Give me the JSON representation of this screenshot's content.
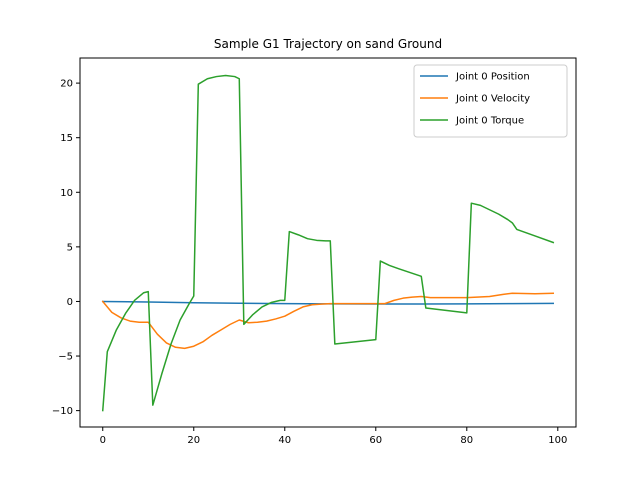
{
  "chart_data": {
    "type": "line",
    "title": "Sample G1 Trajectory on sand Ground",
    "xlabel": "",
    "ylabel": "",
    "xlim": [
      -5,
      104
    ],
    "ylim": [
      -11.5,
      22.3
    ],
    "xticks": [
      0,
      20,
      40,
      60,
      80,
      100
    ],
    "yticks": [
      -10,
      -5,
      0,
      5,
      10,
      15,
      20
    ],
    "legend_position": "top-right",
    "grid": false,
    "series": [
      {
        "name": "Joint 0 Position",
        "color": "#1f77b4",
        "x": [
          0,
          10,
          20,
          30,
          40,
          50,
          60,
          70,
          80,
          90,
          99
        ],
        "y": [
          0.0,
          -0.05,
          -0.12,
          -0.17,
          -0.2,
          -0.22,
          -0.23,
          -0.23,
          -0.22,
          -0.2,
          -0.18
        ]
      },
      {
        "name": "Joint 0 Velocity",
        "color": "#ff7f0e",
        "x": [
          0,
          2,
          4,
          6,
          8,
          10,
          12,
          14,
          16,
          18,
          20,
          22,
          24,
          26,
          28,
          30,
          32,
          34,
          36,
          38,
          40,
          42,
          44,
          46,
          48,
          50,
          55,
          60,
          62,
          64,
          66,
          68,
          70,
          72,
          75,
          80,
          85,
          88,
          90,
          95,
          99
        ],
        "y": [
          0.0,
          -1.0,
          -1.5,
          -1.8,
          -1.9,
          -1.9,
          -3.0,
          -3.8,
          -4.2,
          -4.3,
          -4.1,
          -3.7,
          -3.1,
          -2.6,
          -2.1,
          -1.7,
          -1.95,
          -1.9,
          -1.8,
          -1.6,
          -1.35,
          -0.9,
          -0.5,
          -0.3,
          -0.25,
          -0.2,
          -0.2,
          -0.2,
          -0.2,
          0.1,
          0.3,
          0.4,
          0.45,
          0.35,
          0.35,
          0.35,
          0.45,
          0.65,
          0.75,
          0.7,
          0.75
        ]
      },
      {
        "name": "Joint 0 Torque",
        "color": "#2ca02c",
        "x": [
          0,
          1,
          3,
          5,
          7,
          9,
          10,
          11,
          13,
          15,
          17,
          19,
          20,
          21,
          23,
          25,
          27,
          29,
          30,
          31,
          33,
          35,
          37,
          39,
          40,
          41,
          43,
          45,
          47,
          49,
          50,
          51,
          60,
          61,
          63,
          65,
          70,
          71,
          80,
          81,
          83,
          85,
          87,
          89,
          90,
          91,
          95,
          99
        ],
        "y": [
          -10.0,
          -4.6,
          -2.6,
          -1.1,
          0.1,
          0.8,
          0.9,
          -9.5,
          -6.6,
          -3.9,
          -1.7,
          -0.2,
          0.5,
          19.9,
          20.4,
          20.6,
          20.7,
          20.6,
          20.4,
          -2.1,
          -1.2,
          -0.5,
          -0.1,
          0.1,
          0.1,
          6.4,
          6.1,
          5.75,
          5.6,
          5.55,
          5.55,
          -3.9,
          -3.5,
          3.7,
          3.3,
          3.0,
          2.3,
          -0.6,
          -1.05,
          9.0,
          8.8,
          8.4,
          8.0,
          7.5,
          7.2,
          6.6,
          6.0,
          5.4
        ]
      }
    ]
  }
}
